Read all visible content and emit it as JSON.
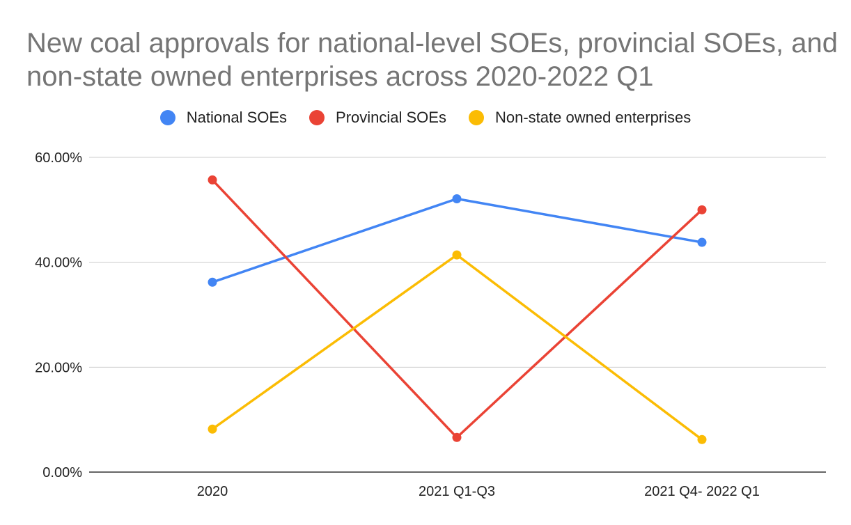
{
  "chart_data": {
    "type": "line",
    "title": "New coal approvals for national-level SOEs, provincial SOEs, and non-state owned enterprises across 2020-2022 Q1",
    "categories": [
      "2020",
      "2021 Q1-Q3",
      "2021 Q4- 2022 Q1"
    ],
    "series": [
      {
        "name": "National SOEs",
        "color": "#4285f4",
        "values": [
          36.2,
          52.1,
          43.8
        ]
      },
      {
        "name": "Provincial SOEs",
        "color": "#ea4335",
        "values": [
          55.7,
          6.6,
          50.0
        ]
      },
      {
        "name": "Non-state owned enterprises",
        "color": "#fbbc04",
        "values": [
          8.2,
          41.4,
          6.2
        ]
      }
    ],
    "ylim": [
      0,
      60
    ],
    "yticks": [
      "0.00%",
      "20.00%",
      "40.00%",
      "60.00%"
    ],
    "ytick_values": [
      0,
      20,
      40,
      60
    ],
    "legend_position": "top",
    "grid": true
  }
}
